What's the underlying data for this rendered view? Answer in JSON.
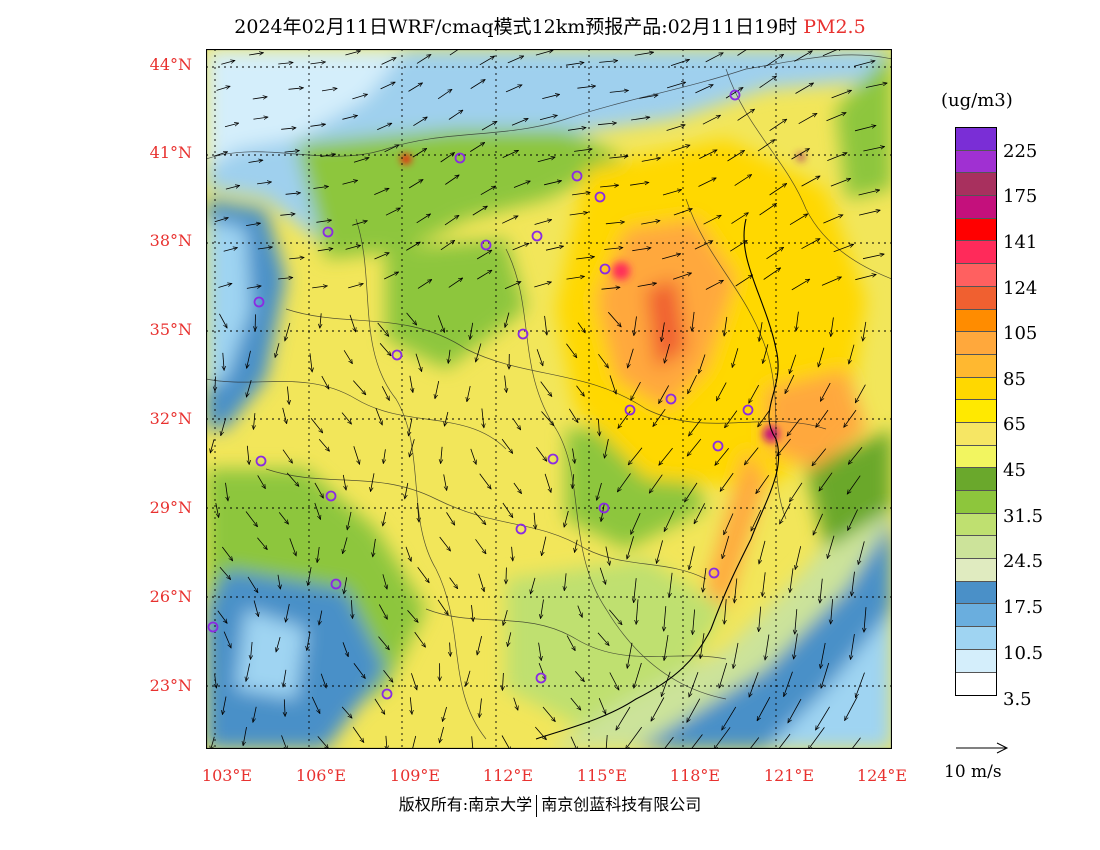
{
  "title": {
    "main": "2024年02月11日WRF/cmaq模式12km预报产品:02月11日19时",
    "pollutant": "PM2.5"
  },
  "axes": {
    "lat_labels": [
      "44°N",
      "41°N",
      "38°N",
      "35°N",
      "32°N",
      "29°N",
      "26°N",
      "23°N"
    ],
    "lon_labels": [
      "103°E",
      "106°E",
      "109°E",
      "112°E",
      "115°E",
      "118°E",
      "121°E",
      "124°E"
    ]
  },
  "colorbar": {
    "unit": "(ug/m3)",
    "labels": [
      "225",
      "175",
      "141",
      "124",
      "105",
      "85",
      "65",
      "45",
      "31.5",
      "24.5",
      "17.5",
      "10.5",
      "3.5"
    ],
    "colors": [
      "#7a2ed6",
      "#a030d2",
      "#a8305e",
      "#c4107c",
      "#ff0000",
      "#ff2a5a",
      "#ff6060",
      "#f06030",
      "#ff8c00",
      "#ffa83c",
      "#ffb830",
      "#ffd800",
      "#ffe900",
      "#f6e664",
      "#f2f560",
      "#6aa82c",
      "#8dc63c",
      "#bfe070",
      "#cce39a",
      "#e0ebc0",
      "#4a90c8",
      "#6aaede",
      "#9fd4f2",
      "#d4eefb",
      "#ffffff"
    ]
  },
  "wind_legend": {
    "label": "10 m/s"
  },
  "copyright": {
    "left": "版权所有:南京大学",
    "right": "南京创蓝科技有限公司"
  },
  "colors": {
    "label_red": "#e8312f"
  }
}
